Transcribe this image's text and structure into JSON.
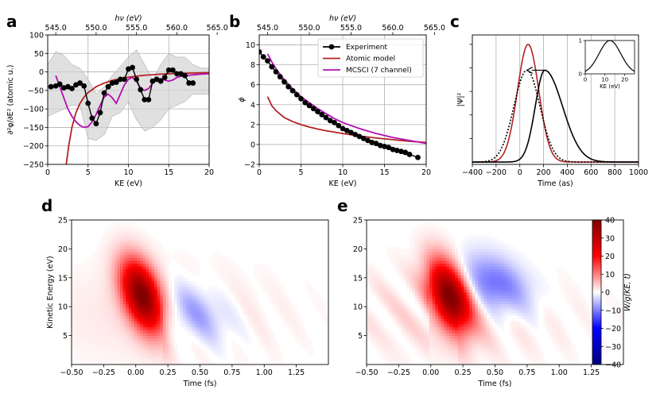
{
  "chart_data": [
    {
      "panel": "a",
      "type": "line",
      "xlabel": "KE (eV)",
      "ylabel": "∂²φ/∂E² (atomic u.)",
      "top_xlabel": "hν (eV)",
      "xlim": [
        0,
        20
      ],
      "ylim": [
        -250,
        100
      ],
      "xticks": [
        0,
        5,
        10,
        15,
        20
      ],
      "yticks": [
        -250,
        -200,
        -150,
        -100,
        -50,
        0,
        50,
        100
      ],
      "top_xticks": [
        {
          "ke": 1.0,
          "label": "545.0"
        },
        {
          "ke": 6.0,
          "label": "550.0"
        },
        {
          "ke": 11.0,
          "label": "555.0"
        },
        {
          "ke": 16.0,
          "label": "560.0"
        },
        {
          "ke": 21.0,
          "label": "565.0"
        }
      ],
      "grid": true,
      "series": [
        {
          "name": "Experiment",
          "color": "#000000",
          "marker": "circle",
          "x": [
            0.4,
            1.0,
            1.5,
            2.0,
            2.5,
            3.0,
            3.5,
            4.0,
            4.5,
            5.0,
            5.5,
            6.0,
            6.5,
            7.0,
            7.5,
            8.0,
            8.5,
            9.0,
            9.5,
            10.0,
            10.5,
            11.0,
            11.5,
            12.0,
            12.5,
            13.0,
            13.5,
            14.0,
            14.5,
            15.0,
            15.5,
            16.0,
            16.5,
            17.0,
            17.5,
            18.0
          ],
          "y": [
            -40,
            -38,
            -33,
            -43,
            -40,
            -45,
            -35,
            -30,
            -38,
            -85,
            -125,
            -140,
            -110,
            -57,
            -40,
            -30,
            -28,
            -20,
            -20,
            8,
            12,
            -20,
            -48,
            -75,
            -75,
            -25,
            -20,
            -25,
            -15,
            5,
            5,
            -5,
            -5,
            -10,
            -30,
            -30
          ]
        },
        {
          "name": "Atomic model",
          "color": "#b22222",
          "x": [
            2.3,
            2.6,
            3.0,
            3.5,
            4.0,
            4.5,
            5.0,
            6.0,
            7.0,
            8.0,
            9.0,
            10.0,
            12.0,
            14.0,
            16.0,
            18.0,
            20.0
          ],
          "y": [
            -250,
            -200,
            -150,
            -110,
            -85,
            -68,
            -56,
            -40,
            -30,
            -23,
            -18,
            -14,
            -9,
            -6,
            -4,
            -3,
            -2
          ]
        },
        {
          "name": "MCSCI (7 channel)",
          "color": "#b310b3",
          "x": [
            1.0,
            1.5,
            2.0,
            2.5,
            3.0,
            3.5,
            4.0,
            4.5,
            5.0,
            5.5,
            6.0,
            6.5,
            7.0,
            7.5,
            8.0,
            8.5,
            9.0,
            9.5,
            10.0,
            10.5,
            11.0,
            11.5,
            12.0,
            12.5,
            13.0,
            13.5,
            14.0,
            14.5,
            15.0,
            15.5,
            16.0,
            16.5,
            17.0,
            18.0,
            19.0,
            20.0
          ],
          "y": [
            -10,
            -40,
            -70,
            -100,
            -120,
            -135,
            -145,
            -150,
            -148,
            -135,
            -115,
            -90,
            -68,
            -60,
            -70,
            -85,
            -60,
            -35,
            -20,
            -15,
            -25,
            -45,
            -50,
            -45,
            -30,
            -20,
            -18,
            -22,
            -25,
            -22,
            -15,
            -12,
            -10,
            -8,
            -6,
            -5
          ]
        }
      ],
      "band": {
        "name": "uncertainty",
        "color": "#d3d3d3",
        "x": [
          0,
          1,
          2,
          3,
          4,
          5,
          6,
          7,
          8,
          9,
          10,
          11,
          12,
          13,
          14,
          15,
          16,
          17,
          18,
          19,
          20
        ],
        "low": [
          -120,
          -110,
          -100,
          -90,
          -90,
          -180,
          -185,
          -170,
          -120,
          -110,
          -80,
          -130,
          -160,
          -150,
          -130,
          -100,
          -90,
          -80,
          -60,
          -60,
          -60
        ],
        "high": [
          20,
          55,
          45,
          20,
          10,
          -20,
          -60,
          -40,
          -10,
          15,
          40,
          60,
          20,
          -20,
          20,
          50,
          40,
          40,
          20,
          10,
          10
        ]
      }
    },
    {
      "panel": "b",
      "type": "line",
      "xlabel": "KE (eV)",
      "ylabel": "ϕ",
      "top_xlabel": "hν (eV)",
      "xlim": [
        0,
        20
      ],
      "ylim": [
        -2,
        11
      ],
      "xticks": [
        0,
        5,
        10,
        15,
        20
      ],
      "yticks": [
        -2,
        0,
        2,
        4,
        6,
        8,
        10
      ],
      "top_xticks": [
        {
          "ke": 1.0,
          "label": "545.0"
        },
        {
          "ke": 6.0,
          "label": "550.0"
        },
        {
          "ke": 11.0,
          "label": "555.0"
        },
        {
          "ke": 16.0,
          "label": "560.0"
        },
        {
          "ke": 21.0,
          "label": "565.0"
        }
      ],
      "grid": true,
      "legend": "top-right",
      "series": [
        {
          "name": "Experiment",
          "color": "#000000",
          "marker": "circle",
          "x": [
            0.0,
            0.5,
            1.0,
            1.5,
            2.0,
            2.5,
            3.0,
            3.5,
            4.0,
            4.5,
            5.0,
            5.5,
            6.0,
            6.5,
            7.0,
            7.5,
            8.0,
            8.5,
            9.0,
            9.5,
            10.0,
            10.5,
            11.0,
            11.5,
            12.0,
            12.5,
            13.0,
            13.5,
            14.0,
            14.5,
            15.0,
            15.5,
            16.0,
            16.5,
            17.0,
            17.5,
            18.0,
            19.0
          ],
          "y": [
            9.3,
            8.8,
            8.4,
            7.8,
            7.3,
            6.8,
            6.3,
            5.8,
            5.4,
            5.0,
            4.6,
            4.2,
            3.9,
            3.6,
            3.3,
            3.0,
            2.7,
            2.4,
            2.2,
            1.9,
            1.6,
            1.4,
            1.2,
            1.0,
            0.8,
            0.6,
            0.4,
            0.2,
            0.1,
            -0.1,
            -0.2,
            -0.3,
            -0.5,
            -0.6,
            -0.7,
            -0.8,
            -1.0,
            -1.3
          ]
        },
        {
          "name": "Atomic model",
          "color": "#b22222",
          "x": [
            1.0,
            1.5,
            2.0,
            3.0,
            4.0,
            5.0,
            6.0,
            7.0,
            8.0,
            10.0,
            12.0,
            14.0,
            16.0,
            18.0,
            20.0
          ],
          "y": [
            4.8,
            3.9,
            3.4,
            2.7,
            2.3,
            2.0,
            1.75,
            1.55,
            1.38,
            1.1,
            0.85,
            0.65,
            0.48,
            0.32,
            0.2
          ]
        },
        {
          "name": "MCSCI (7 channel)",
          "color": "#b310b3",
          "x": [
            1.0,
            1.5,
            2.0,
            3.0,
            4.0,
            5.0,
            6.0,
            7.0,
            8.0,
            9.0,
            10.0,
            12.0,
            14.0,
            16.0,
            18.0,
            20.0
          ],
          "y": [
            9.1,
            8.3,
            7.6,
            6.5,
            5.6,
            4.8,
            4.2,
            3.6,
            3.1,
            2.6,
            2.2,
            1.6,
            1.1,
            0.7,
            0.4,
            0.1
          ]
        }
      ]
    },
    {
      "panel": "c",
      "type": "line",
      "xlabel": "Time (as)",
      "ylabel": "|Ψ|²",
      "xlim": [
        -400,
        1000
      ],
      "xticks": [
        -400,
        -200,
        0,
        200,
        400,
        600,
        800,
        1000
      ],
      "grid": true,
      "series": [
        {
          "name": "red pulse",
          "color": "#b22222",
          "center": 70,
          "width": 90,
          "peak": 1.0
        },
        {
          "name": "dotted pulse",
          "color": "#000000",
          "dash": "dotted",
          "center": 60,
          "width": 110,
          "peak": 0.78
        },
        {
          "name": "black pulse",
          "color": "#000000",
          "center": 210,
          "width_left": 80,
          "width_right": 150,
          "peak": 0.78
        }
      ],
      "annotation": {
        "type": "arrow",
        "from_x": 210,
        "to_x": 60,
        "y": 0.78
      },
      "inset": {
        "xlabel": "KE (eV)",
        "xlim": [
          0,
          25
        ],
        "ylim": [
          0,
          1
        ],
        "xticks": [
          0,
          10,
          20
        ],
        "yticks": [
          0,
          1
        ],
        "curve": {
          "center": 12.5,
          "width": 5.5,
          "peak": 1.0
        }
      }
    },
    {
      "panel": "d",
      "type": "heatmap",
      "xlabel": "Time (fs)",
      "ylabel": "Kinetic Energy (eV)",
      "xlim": [
        -0.5,
        1.5
      ],
      "ylim": [
        0,
        25
      ],
      "xticks": [
        -0.5,
        -0.25,
        0.0,
        0.25,
        0.5,
        0.75,
        1.0,
        1.25
      ],
      "xtick_labels": [
        "−0.50",
        "−0.25",
        "0.00",
        "0.25",
        "0.50",
        "0.75",
        "1.00",
        "1.25"
      ],
      "yticks": [
        5,
        10,
        15,
        20,
        25
      ],
      "main_peak": {
        "t": 0.05,
        "e": 12,
        "value": 40
      },
      "negative_lobe": {
        "t": 0.45,
        "e": 9,
        "value": -8
      }
    },
    {
      "panel": "e",
      "type": "heatmap",
      "xlabel": "Time (fs)",
      "xlim": [
        -0.5,
        1.5
      ],
      "ylim": [
        0,
        25
      ],
      "xticks": [
        -0.5,
        -0.25,
        0.0,
        0.25,
        0.5,
        0.75,
        1.0,
        1.25
      ],
      "xtick_labels": [
        "−0.50",
        "−0.25",
        "0.00",
        "0.25",
        "0.50",
        "0.75",
        "1.00",
        "1.25"
      ],
      "yticks": [
        5,
        10,
        15,
        20,
        25
      ],
      "main_peak": {
        "t": 0.15,
        "e": 12,
        "value": 40
      },
      "negative_lobe": {
        "t": 0.5,
        "e": 14,
        "value": -12
      }
    },
    {
      "panel": "colorbar",
      "type": "colorbar",
      "label": "W/g(KE, t)",
      "range": [
        -40,
        40
      ],
      "ticks": [
        -40,
        -30,
        -20,
        -10,
        0,
        10,
        20,
        30,
        40
      ],
      "tick_labels": [
        "−40",
        "−30",
        "−20",
        "−10",
        "0",
        "10",
        "20",
        "30",
        "40"
      ]
    }
  ],
  "panel_letters": [
    "a",
    "b",
    "c",
    "d",
    "e"
  ]
}
